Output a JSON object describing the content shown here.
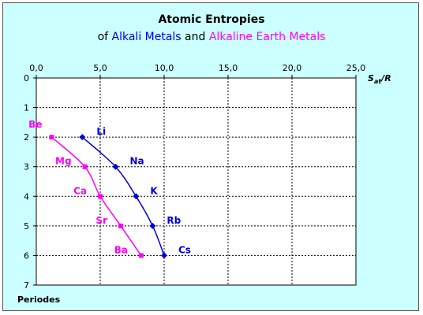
{
  "chart_data": {
    "type": "line",
    "title": "Atomic Entropies",
    "subtitle": {
      "prefix": "of ",
      "part1": "Alkali Metals",
      "middle": " and ",
      "part2": "Alkaline Earth Metals"
    },
    "xlabel": {
      "main": "S",
      "sub": "at",
      "tail": "/R"
    },
    "ylabel": "Periodes",
    "xlim": [
      0,
      25
    ],
    "ylim": [
      0,
      7
    ],
    "y_inverted": true,
    "x_axis_position": "top",
    "grid": true,
    "x_ticks": [
      "0,0",
      "5,0",
      "10,0",
      "15,0",
      "20,0",
      "25,0"
    ],
    "y_ticks": [
      "0",
      "1",
      "2",
      "3",
      "4",
      "5",
      "6",
      "7"
    ],
    "series": [
      {
        "name": "Alkali Metals",
        "color": "#0000dd",
        "points": [
          {
            "label": "Li",
            "x": 3.6,
            "y": 2
          },
          {
            "label": "Na",
            "x": 6.2,
            "y": 3
          },
          {
            "label": "K",
            "x": 7.8,
            "y": 4
          },
          {
            "label": "Rb",
            "x": 9.1,
            "y": 5
          },
          {
            "label": "Cs",
            "x": 10.0,
            "y": 6
          }
        ]
      },
      {
        "name": "Alkaline Earth Metals",
        "color": "#ff00ff",
        "points": [
          {
            "label": "Be",
            "x": 1.2,
            "y": 2
          },
          {
            "label": "Mg",
            "x": 3.8,
            "y": 3
          },
          {
            "label": "Ca",
            "x": 5.0,
            "y": 4
          },
          {
            "label": "Sr",
            "x": 6.6,
            "y": 5
          },
          {
            "label": "Ba",
            "x": 8.2,
            "y": 6
          }
        ]
      }
    ]
  }
}
